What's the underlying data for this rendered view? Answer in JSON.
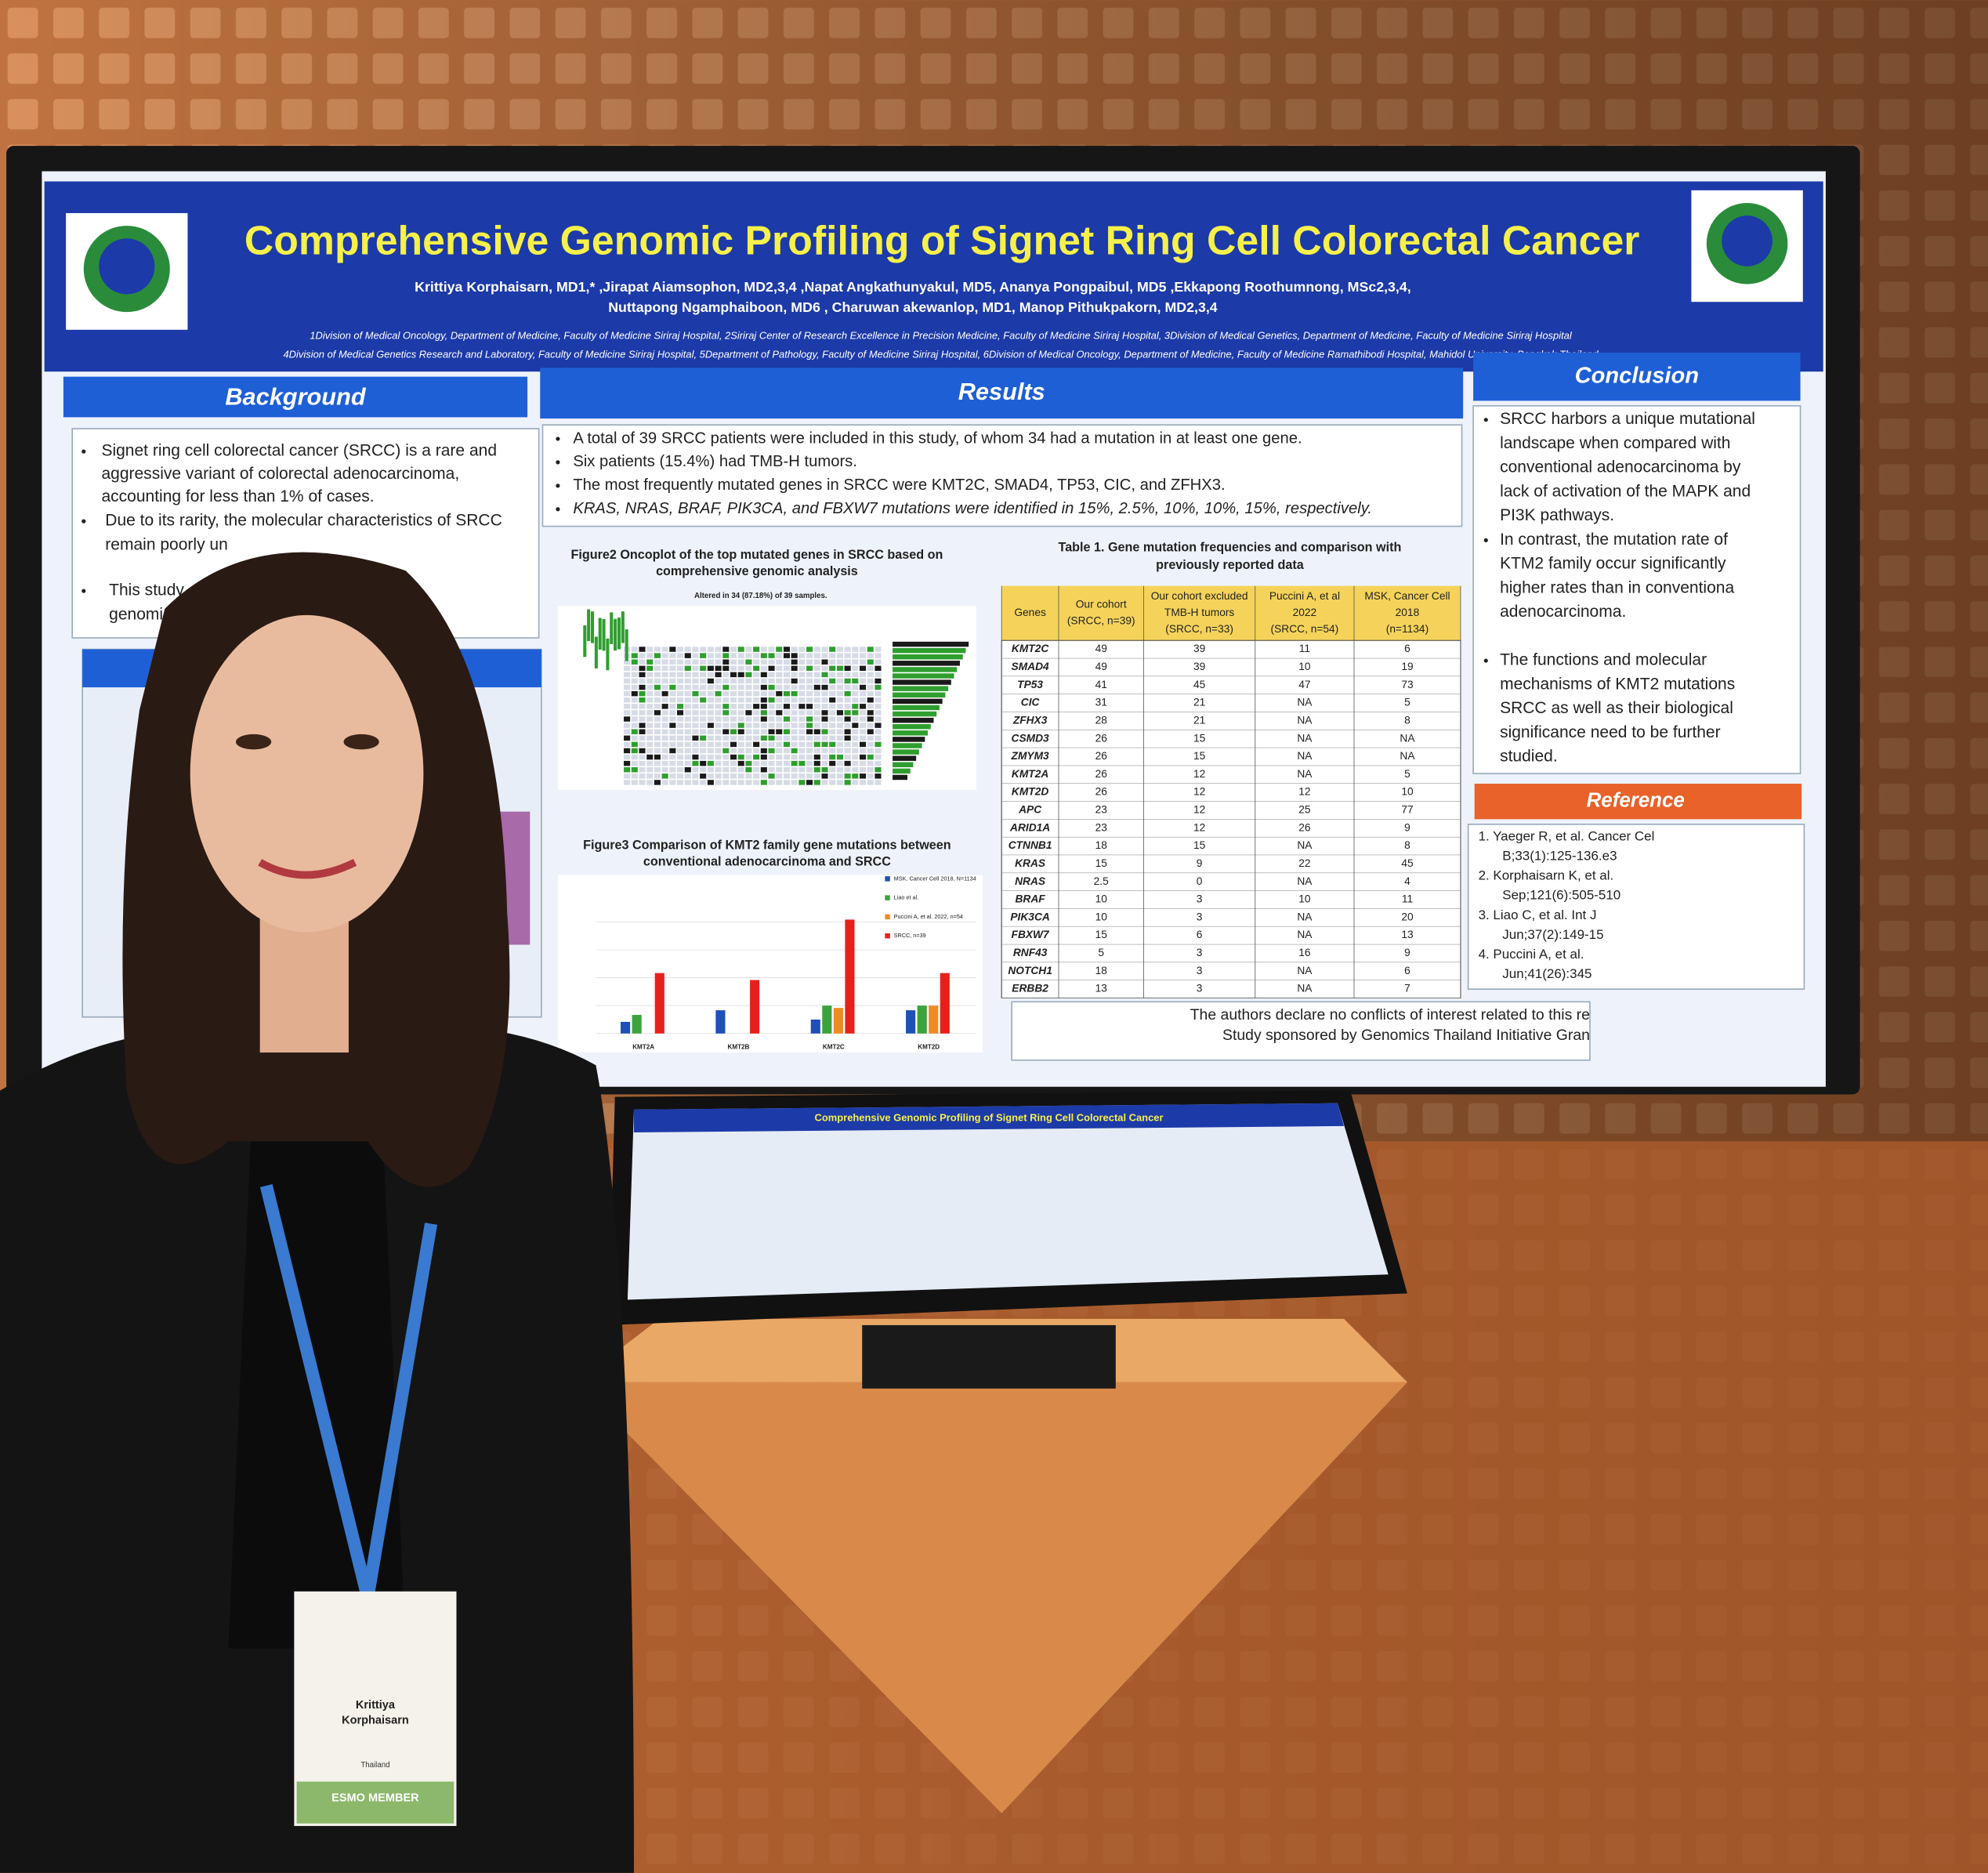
{
  "poster": {
    "title": "Comprehensive Genomic Profiling of Signet Ring Cell Colorectal Cancer",
    "authors": [
      "Krittiya Korphaisarn, MD1,* ,Jirapat Aiamsophon, MD2,3,4 ,Napat Angkathunyakul, MD5, Ananya Pongpaibul, MD5 ,Ekkapong Roothumnong, MSc2,3,4,",
      "Nuttapong Ngamphaiboon, MD6 , Charuwan akewanlop, MD1, Manop Pithukpakorn, MD2,3,4"
    ],
    "affiliations": [
      "1Division of Medical Oncology, Department of Medicine, Faculty of Medicine Siriraj Hospital, 2Siriraj Center of Research Excellence in Precision Medicine, Faculty of Medicine Siriraj Hospital, 3Division of Medical Genetics, Department of Medicine, Faculty of Medicine Siriraj Hospital",
      "4Division of Medical Genetics Research and Laboratory, Faculty of Medicine Siriraj Hospital, 5Department of Pathology, Faculty of Medicine Siriraj Hospital, 6Division of Medical Oncology, Department of Medicine, Faculty of Medicine Ramathibodi Hospital, Mahidol University, Bangkok Thailand"
    ],
    "background": {
      "heading": "Background",
      "lines": [
        "Signet ring cell colorectal cancer (SRCC) is a rare and",
        "aggressive variant of colorectal adenocarcinoma,",
        "accounting for less than 1% of cases.",
        "Due to its rarity, the molecular characteristics of SRCC",
        "remain poorly un",
        "This study",
        "genomi"
      ]
    },
    "results": {
      "heading": "Results",
      "bullets": [
        "A total of 39 SRCC patients were included in this study, of whom 34 had a mutation in at least one gene.",
        "Six patients (15.4%) had TMB-H tumors.",
        "The most frequently mutated genes in SRCC were KMT2C, SMAD4, TP53, CIC, and ZFHX3.",
        "KRAS, NRAS, BRAF, PIK3CA, and FBXW7 mutations were identified in 15%, 2.5%, 10%, 10%, 15%, respectively."
      ]
    },
    "figure2": {
      "caption": [
        "Figure2 Oncoplot of the top mutated genes in SRCC based on",
        "comprehensive genomic analysis"
      ],
      "note": "Altered in 34 (87.18%) of 39 samples."
    },
    "figure3": {
      "caption": [
        "Figure3 Comparison of KMT2 family gene mutations between",
        "conventional adenocarcinoma and SRCC"
      ],
      "chart_data": {
        "type": "bar",
        "categories": [
          "KMT2A",
          "KMT2B",
          "KMT2C",
          "KMT2D"
        ],
        "ylim": [
          0,
          60
        ],
        "series": [
          {
            "name": "MSK, Cancer Cell 2018, N=1134",
            "color": "#1f4fb8",
            "values": [
              5,
              10,
              6,
              10
            ]
          },
          {
            "name": "Liao et al.",
            "color": "#3ca33c",
            "values": [
              8,
              0,
              12,
              12
            ]
          },
          {
            "name": "Puccini A, et al. 2022, n=54",
            "color": "#f08a24",
            "values": [
              0,
              0,
              11,
              12
            ]
          },
          {
            "name": "SRCC, n=39",
            "color": "#e8201c",
            "values": [
              26,
              23,
              49,
              26
            ]
          }
        ]
      }
    },
    "table": {
      "caption": [
        "Table 1. Gene mutation frequencies and comparison with",
        "previously reported data"
      ],
      "header": [
        [
          "Genes"
        ],
        [
          "Our cohort",
          "(SRCC, n=39)"
        ],
        [
          "Our cohort excluded",
          "TMB-H tumors",
          "(SRCC, n=33)"
        ],
        [
          "Puccini A, et al",
          "2022",
          "(SRCC, n=54)"
        ],
        [
          "MSK, Cancer Cell",
          "2018",
          "(n=1134)"
        ]
      ],
      "rows": [
        [
          "KMT2C",
          "49",
          "39",
          "11",
          "6"
        ],
        [
          "SMAD4",
          "49",
          "39",
          "10",
          "19"
        ],
        [
          "TP53",
          "41",
          "45",
          "47",
          "73"
        ],
        [
          "CIC",
          "31",
          "21",
          "NA",
          "5"
        ],
        [
          "ZFHX3",
          "28",
          "21",
          "NA",
          "8"
        ],
        [
          "CSMD3",
          "26",
          "15",
          "NA",
          "NA"
        ],
        [
          "ZMYM3",
          "26",
          "15",
          "NA",
          "NA"
        ],
        [
          "KMT2A",
          "26",
          "12",
          "NA",
          "5"
        ],
        [
          "KMT2D",
          "26",
          "12",
          "12",
          "10"
        ],
        [
          "APC",
          "23",
          "12",
          "25",
          "77"
        ],
        [
          "ARID1A",
          "23",
          "12",
          "26",
          "9"
        ],
        [
          "CTNNB1",
          "18",
          "15",
          "NA",
          "8"
        ],
        [
          "KRAS",
          "15",
          "9",
          "22",
          "45"
        ],
        [
          "NRAS",
          "2.5",
          "0",
          "NA",
          "4"
        ],
        [
          "BRAF",
          "10",
          "3",
          "10",
          "11"
        ],
        [
          "PIK3CA",
          "10",
          "3",
          "NA",
          "20"
        ],
        [
          "FBXW7",
          "15",
          "6",
          "NA",
          "13"
        ],
        [
          "RNF43",
          "5",
          "3",
          "16",
          "9"
        ],
        [
          "NOTCH1",
          "18",
          "3",
          "NA",
          "6"
        ],
        [
          "ERBB2",
          "13",
          "3",
          "NA",
          "7"
        ]
      ]
    },
    "conclusion": {
      "heading": "Conclusion",
      "bullets": [
        [
          "SRCC harbors a unique mutational",
          "landscape when compared with",
          "conventional adenocarcinoma by",
          "lack of activation of the MAPK and",
          "PI3K pathways."
        ],
        [
          "In contrast, the mutation rate of",
          "KTM2 family occur significantly",
          "higher rates than in conventiona",
          "adenocarcinoma."
        ],
        [
          "The functions and molecular",
          "mechanisms of KMT2 mutations",
          "SRCC as well as their biological",
          "significance need to be further",
          "studied."
        ]
      ]
    },
    "reference": {
      "heading": "Reference",
      "lines": [
        "1.  Yaeger R, et al. Cancer Cel",
        "B;33(1):125-136.e3",
        "2.  Korphaisarn K, et al.",
        "Sep;121(6):505-510",
        "3.  Liao C, et al. Int J",
        "Jun;37(2):149-15",
        "4.  Puccini A, et al.",
        "Jun;41(26):345"
      ]
    },
    "footer": [
      "The authors declare no conflicts of interest related to this re",
      "Study sponsored by Genomics Thailand Initiative Gran"
    ]
  },
  "badge": {
    "name": [
      "Krittiya",
      "Korphaisarn"
    ],
    "country": "Thailand",
    "member": "ESMO MEMBER"
  }
}
